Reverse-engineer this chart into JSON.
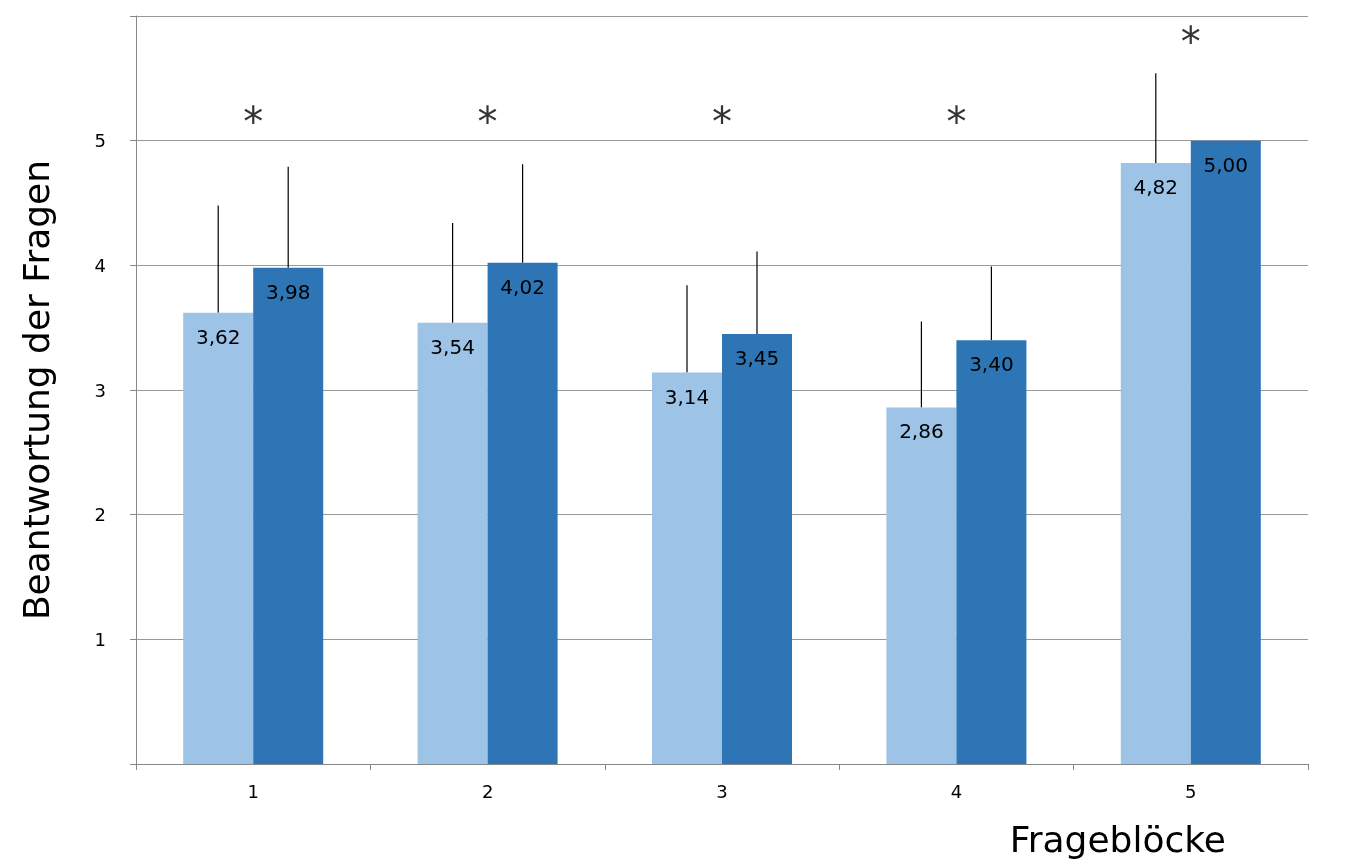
{
  "chart_data": {
    "type": "bar",
    "xlabel": "Frageblöcke",
    "ylabel": "Beantwortung der Fragen",
    "categories": [
      "1",
      "2",
      "3",
      "4",
      "5"
    ],
    "series": [
      {
        "color": "#9dc3e6",
        "values": [
          3.62,
          3.54,
          3.14,
          2.86,
          4.82
        ],
        "value_labels": [
          "3,62",
          "3,54",
          "3,14",
          "2,86",
          "4,82"
        ],
        "errors": [
          [
            3.62,
            4.48
          ],
          [
            3.54,
            4.34
          ],
          [
            3.14,
            3.84
          ],
          [
            2.86,
            3.55
          ],
          [
            4.82,
            5.54
          ]
        ]
      },
      {
        "color": "#2e75b6",
        "values": [
          3.98,
          4.02,
          3.45,
          3.4,
          5.0
        ],
        "value_labels": [
          "3,98",
          "4,02",
          "3,45",
          "3,40",
          "5,00"
        ],
        "errors": [
          [
            3.98,
            4.79
          ],
          [
            4.02,
            4.81
          ],
          [
            3.45,
            4.11
          ],
          [
            3.4,
            3.99
          ],
          null
        ]
      }
    ],
    "annotations": [
      "*",
      "*",
      "*",
      "*",
      "*"
    ],
    "ylim": [
      0,
      6
    ],
    "yticks": [
      {
        "value": 0,
        "label": null
      },
      1,
      2,
      3,
      4,
      5,
      {
        "value": 6,
        "label": null
      }
    ],
    "grid": "y"
  }
}
